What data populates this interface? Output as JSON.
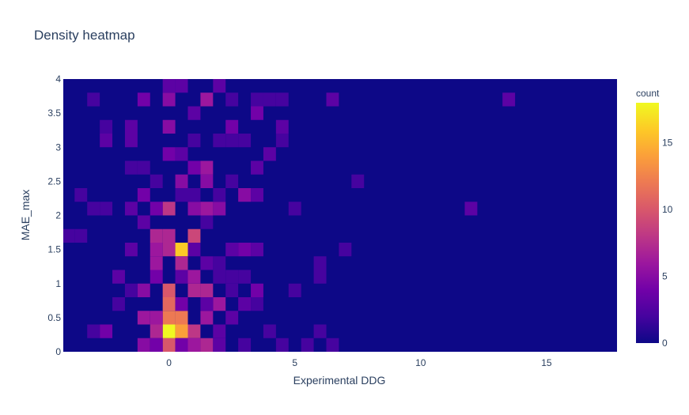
{
  "chart_data": {
    "type": "heatmap",
    "title": "Density heatmap",
    "xlabel": "Experimental DDG",
    "ylabel": "MAE_max",
    "xlim": [
      -4.2,
      17.8
    ],
    "ylim": [
      0,
      4
    ],
    "x_ticks": [
      0,
      5,
      10,
      15
    ],
    "y_ticks": [
      0,
      0.5,
      1,
      1.5,
      2,
      2.5,
      3,
      3.5,
      4
    ],
    "x_tick_labels": [
      "0",
      "5",
      "10",
      "15"
    ],
    "y_tick_labels": [
      "0",
      "0.5",
      "1",
      "1.5",
      "2",
      "2.5",
      "3",
      "3.5",
      "4"
    ],
    "bin_size_x": 0.5,
    "bin_size_y": 0.2,
    "x_bin_start": -4.25,
    "y_bin_start": 0,
    "grid": false,
    "colorbar": {
      "title": "count",
      "range": [
        0,
        18
      ],
      "ticks": [
        0,
        5,
        10,
        15
      ],
      "tick_labels": [
        "0",
        "5",
        "10",
        "15"
      ],
      "colorscale": [
        "#0d0887",
        "#46039f",
        "#7201a8",
        "#9c179e",
        "#bd3786",
        "#d8576b",
        "#ed7953",
        "#fb9f3a",
        "#fdca26",
        "#f0f921"
      ]
    },
    "background_count": 0,
    "cells": [
      {
        "x": 0,
        "y": 0.1,
        "count": 10
      },
      {
        "x": 0,
        "y": 0.3,
        "count": 18
      },
      {
        "x": 0.5,
        "y": 0.3,
        "count": 14
      },
      {
        "x": 0,
        "y": 0.5,
        "count": 12
      },
      {
        "x": 0.5,
        "y": 0.5,
        "count": 12
      },
      {
        "x": 0,
        "y": 0.7,
        "count": 11
      },
      {
        "x": 0,
        "y": 0.9,
        "count": 10
      },
      {
        "x": 0,
        "y": 1.5,
        "count": 7
      },
      {
        "x": 0.5,
        "y": 1.5,
        "count": 16
      },
      {
        "x": 0,
        "y": 1.7,
        "count": 7
      },
      {
        "x": 0,
        "y": 2.1,
        "count": 8
      },
      {
        "x": 1,
        "y": 1.7,
        "count": 9
      },
      {
        "x": 1,
        "y": 0.9,
        "count": 7
      },
      {
        "x": 1.5,
        "y": 0.9,
        "count": 7
      },
      {
        "x": 1,
        "y": 0.3,
        "count": 8
      },
      {
        "x": 1,
        "y": 0.1,
        "count": 6
      },
      {
        "x": 1.5,
        "y": 0.1,
        "count": 7
      },
      {
        "x": -0.5,
        "y": 0.5,
        "count": 6
      },
      {
        "x": -0.5,
        "y": 0.3,
        "count": 7
      },
      {
        "x": -0.5,
        "y": 1.5,
        "count": 6
      },
      {
        "x": -0.5,
        "y": 1.7,
        "count": 7
      },
      {
        "x": -0.5,
        "y": 1.3,
        "count": 6
      },
      {
        "x": 0.5,
        "y": 1.3,
        "count": 7
      },
      {
        "x": -1,
        "y": 0.1,
        "count": 5
      },
      {
        "x": -1,
        "y": 0.5,
        "count": 6
      },
      {
        "x": -1,
        "y": 0.9,
        "count": 5
      },
      {
        "x": 1,
        "y": 1.1,
        "count": 6
      },
      {
        "x": 1.5,
        "y": 0.5,
        "count": 6
      },
      {
        "x": 2,
        "y": 0.7,
        "count": 6
      },
      {
        "x": 2,
        "y": 2.1,
        "count": 5
      },
      {
        "x": 1.5,
        "y": 2.1,
        "count": 6
      },
      {
        "x": 1,
        "y": 2.1,
        "count": 5
      },
      {
        "x": 0.5,
        "y": 2.5,
        "count": 5
      },
      {
        "x": 1.5,
        "y": 2.5,
        "count": 5
      },
      {
        "x": 1.5,
        "y": 3.7,
        "count": 6
      },
      {
        "x": 0,
        "y": 3.7,
        "count": 5
      },
      {
        "x": -1,
        "y": 3.7,
        "count": 4
      },
      {
        "x": 0,
        "y": 3.3,
        "count": 5
      },
      {
        "x": 1.5,
        "y": 2.7,
        "count": 6
      },
      {
        "x": 1,
        "y": 2.7,
        "count": 4
      },
      {
        "x": 2.5,
        "y": 3.3,
        "count": 4
      },
      {
        "x": 3.5,
        "y": 3.5,
        "count": 4
      },
      {
        "x": 3,
        "y": 2.3,
        "count": 5
      },
      {
        "x": 3.5,
        "y": 2.3,
        "count": 3
      },
      {
        "x": 3.5,
        "y": 2.7,
        "count": 3
      },
      {
        "x": 4,
        "y": 2.9,
        "count": 3
      },
      {
        "x": 2.5,
        "y": 1.5,
        "count": 3
      },
      {
        "x": 3,
        "y": 1.5,
        "count": 4
      },
      {
        "x": 3.5,
        "y": 1.5,
        "count": 3
      },
      {
        "x": 3.5,
        "y": 0.9,
        "count": 4
      },
      {
        "x": 3,
        "y": 0.7,
        "count": 3
      },
      {
        "x": 2.5,
        "y": 0.5,
        "count": 3
      },
      {
        "x": -2.5,
        "y": 0.3,
        "count": 4
      },
      {
        "x": -2,
        "y": 1.1,
        "count": 3
      },
      {
        "x": -1.5,
        "y": 1.5,
        "count": 3
      },
      {
        "x": -1.5,
        "y": 2.1,
        "count": 3
      },
      {
        "x": -1,
        "y": 2.3,
        "count": 4
      },
      {
        "x": -0.5,
        "y": 2.1,
        "count": 4
      },
      {
        "x": 0,
        "y": 2.9,
        "count": 4
      },
      {
        "x": 0.5,
        "y": 2.9,
        "count": 3
      },
      {
        "x": 1,
        "y": 3.5,
        "count": 3
      },
      {
        "x": 0,
        "y": 3.9,
        "count": 3
      },
      {
        "x": 0.5,
        "y": 3.9,
        "count": 3
      },
      {
        "x": 2,
        "y": 3.9,
        "count": 3
      },
      {
        "x": 4.5,
        "y": 3.3,
        "count": 3
      },
      {
        "x": 4.5,
        "y": 3.1,
        "count": 2
      },
      {
        "x": 3.5,
        "y": 3.7,
        "count": 2
      },
      {
        "x": 4,
        "y": 3.7,
        "count": 2
      },
      {
        "x": 4.5,
        "y": 3.7,
        "count": 2
      },
      {
        "x": 2.5,
        "y": 3.7,
        "count": 2
      },
      {
        "x": -3,
        "y": 3.7,
        "count": 2
      },
      {
        "x": -2.5,
        "y": 3.3,
        "count": 2
      },
      {
        "x": -2.5,
        "y": 3.1,
        "count": 3
      },
      {
        "x": -1.5,
        "y": 3.1,
        "count": 3
      },
      {
        "x": -1.5,
        "y": 3.3,
        "count": 3
      },
      {
        "x": 6.5,
        "y": 3.7,
        "count": 3
      },
      {
        "x": 13.5,
        "y": 3.7,
        "count": 3
      },
      {
        "x": 7.5,
        "y": 2.5,
        "count": 2
      },
      {
        "x": 12,
        "y": 2.1,
        "count": 3
      },
      {
        "x": 5,
        "y": 2.1,
        "count": 2
      },
      {
        "x": 7,
        "y": 1.5,
        "count": 2
      },
      {
        "x": 6,
        "y": 1.3,
        "count": 2
      },
      {
        "x": 6,
        "y": 1.1,
        "count": 2
      },
      {
        "x": 5,
        "y": 0.9,
        "count": 2
      },
      {
        "x": 6,
        "y": 0.3,
        "count": 2
      },
      {
        "x": 6.5,
        "y": 0.1,
        "count": 2
      },
      {
        "x": 5.5,
        "y": 0.1,
        "count": 2
      },
      {
        "x": 4.5,
        "y": 0.1,
        "count": 2
      },
      {
        "x": 4,
        "y": 0.3,
        "count": 2
      },
      {
        "x": -3.5,
        "y": 2.3,
        "count": 2
      },
      {
        "x": -3.5,
        "y": 1.7,
        "count": 2
      },
      {
        "x": -4,
        "y": 1.7,
        "count": 2
      },
      {
        "x": -3,
        "y": 2.1,
        "count": 2
      },
      {
        "x": -2.5,
        "y": 2.1,
        "count": 2
      },
      {
        "x": -2,
        "y": 0.7,
        "count": 2
      },
      {
        "x": -1.5,
        "y": 0.9,
        "count": 2
      },
      {
        "x": 2,
        "y": 1.1,
        "count": 2
      },
      {
        "x": 2.5,
        "y": 1.1,
        "count": 2
      },
      {
        "x": 3,
        "y": 1.1,
        "count": 2
      },
      {
        "x": 2,
        "y": 1.3,
        "count": 2
      },
      {
        "x": 2.5,
        "y": 2.5,
        "count": 2
      },
      {
        "x": 2,
        "y": 2.3,
        "count": 2
      },
      {
        "x": 1,
        "y": 2.3,
        "count": 2
      },
      {
        "x": 0.5,
        "y": 2.3,
        "count": 2
      },
      {
        "x": -0.5,
        "y": 2.5,
        "count": 2
      },
      {
        "x": -1,
        "y": 2.7,
        "count": 2
      },
      {
        "x": -1.5,
        "y": 2.7,
        "count": 2
      },
      {
        "x": 2,
        "y": 3.1,
        "count": 2
      },
      {
        "x": 2.5,
        "y": 3.1,
        "count": 2
      },
      {
        "x": 3,
        "y": 3.1,
        "count": 2
      },
      {
        "x": 1,
        "y": 3.1,
        "count": 2
      },
      {
        "x": -1,
        "y": 1.9,
        "count": 3
      },
      {
        "x": 1.5,
        "y": 1.9,
        "count": 2
      },
      {
        "x": 1,
        "y": 1.5,
        "count": 3
      },
      {
        "x": 1.5,
        "y": 1.3,
        "count": 3
      },
      {
        "x": 2.5,
        "y": 0.9,
        "count": 2
      },
      {
        "x": 3.5,
        "y": 0.7,
        "count": 2
      },
      {
        "x": 2,
        "y": 0.3,
        "count": 3
      },
      {
        "x": 2,
        "y": 0.1,
        "count": 3
      },
      {
        "x": 3,
        "y": 0.1,
        "count": 2
      },
      {
        "x": 1.5,
        "y": 0.7,
        "count": 3
      },
      {
        "x": 0.5,
        "y": 0.7,
        "count": 4
      },
      {
        "x": 0.5,
        "y": 0.1,
        "count": 4
      },
      {
        "x": -0.5,
        "y": 0.1,
        "count": 4
      },
      {
        "x": -0.5,
        "y": 1.1,
        "count": 4
      },
      {
        "x": 0.5,
        "y": 1.1,
        "count": 3
      },
      {
        "x": -3,
        "y": 0.3,
        "count": 2
      }
    ]
  }
}
